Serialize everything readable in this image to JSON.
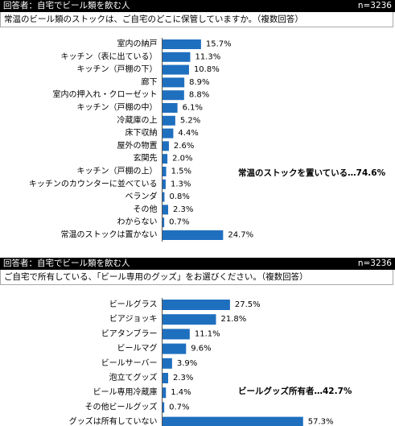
{
  "panels": [
    {
      "header": {
        "respondent": "回答者：自宅でビール類を飲む人",
        "n": "n=3236"
      },
      "question": "常温のビール類のストックは、ご自宅のどこに保管していますか。（複数回答）",
      "highlight": "常温のストックを置いている…74.6%"
    },
    {
      "header": {
        "respondent": "回答者：自宅でビール類を飲む人",
        "n": "n=3236"
      },
      "question": "ご自宅で所有している、「ビール専用のグッズ」をお選びください。（複数回答）",
      "highlight": "ビールグッズ所有者…42.7%"
    }
  ],
  "chart_data": [
    {
      "type": "bar",
      "orientation": "horizontal",
      "title": "",
      "categories": [
        "室内の納戸",
        "キッチン（表に出ている）",
        "キッチン（戸棚の下）",
        "廊下",
        "室内の押入れ・クローゼット",
        "キッチン（戸棚の中）",
        "冷蔵庫の上",
        "床下収納",
        "屋外の物置",
        "玄関先",
        "キッチン（戸棚の上）",
        "キッチンのカウンターに並べている",
        "ベランダ",
        "その他",
        "わからない",
        "常温のストックは置かない"
      ],
      "values": [
        15.7,
        11.3,
        10.8,
        8.9,
        8.8,
        6.1,
        5.2,
        4.4,
        2.6,
        2.0,
        1.5,
        1.3,
        0.8,
        2.3,
        0.7,
        24.7
      ],
      "value_labels": [
        "15.7%",
        "11.3%",
        "10.8%",
        "8.9%",
        "8.8%",
        "6.1%",
        "5.2%",
        "4.4%",
        "2.6%",
        "2.0%",
        "1.5%",
        "1.3%",
        "0.8%",
        "2.3%",
        "0.7%",
        "24.7%"
      ],
      "unit": "%",
      "bar_color": "#1f6fbf",
      "xlim": [
        0,
        60
      ],
      "grid": false
    },
    {
      "type": "bar",
      "orientation": "horizontal",
      "title": "",
      "categories": [
        "ビールグラス",
        "ビアジョッキ",
        "ビアタンブラー",
        "ビールマグ",
        "ビールサーバー",
        "泡立てグッズ",
        "ビール専用冷蔵庫",
        "その他ビールグッズ",
        "グッズは所有していない"
      ],
      "values": [
        27.5,
        21.8,
        11.1,
        9.6,
        3.9,
        2.3,
        1.4,
        0.7,
        57.3
      ],
      "value_labels": [
        "27.5%",
        "21.8%",
        "11.1%",
        "9.6%",
        "3.9%",
        "2.3%",
        "1.4%",
        "0.7%",
        "57.3%"
      ],
      "unit": "%",
      "bar_color": "#1f6fbf",
      "xlim": [
        0,
        60
      ],
      "grid": false
    }
  ]
}
